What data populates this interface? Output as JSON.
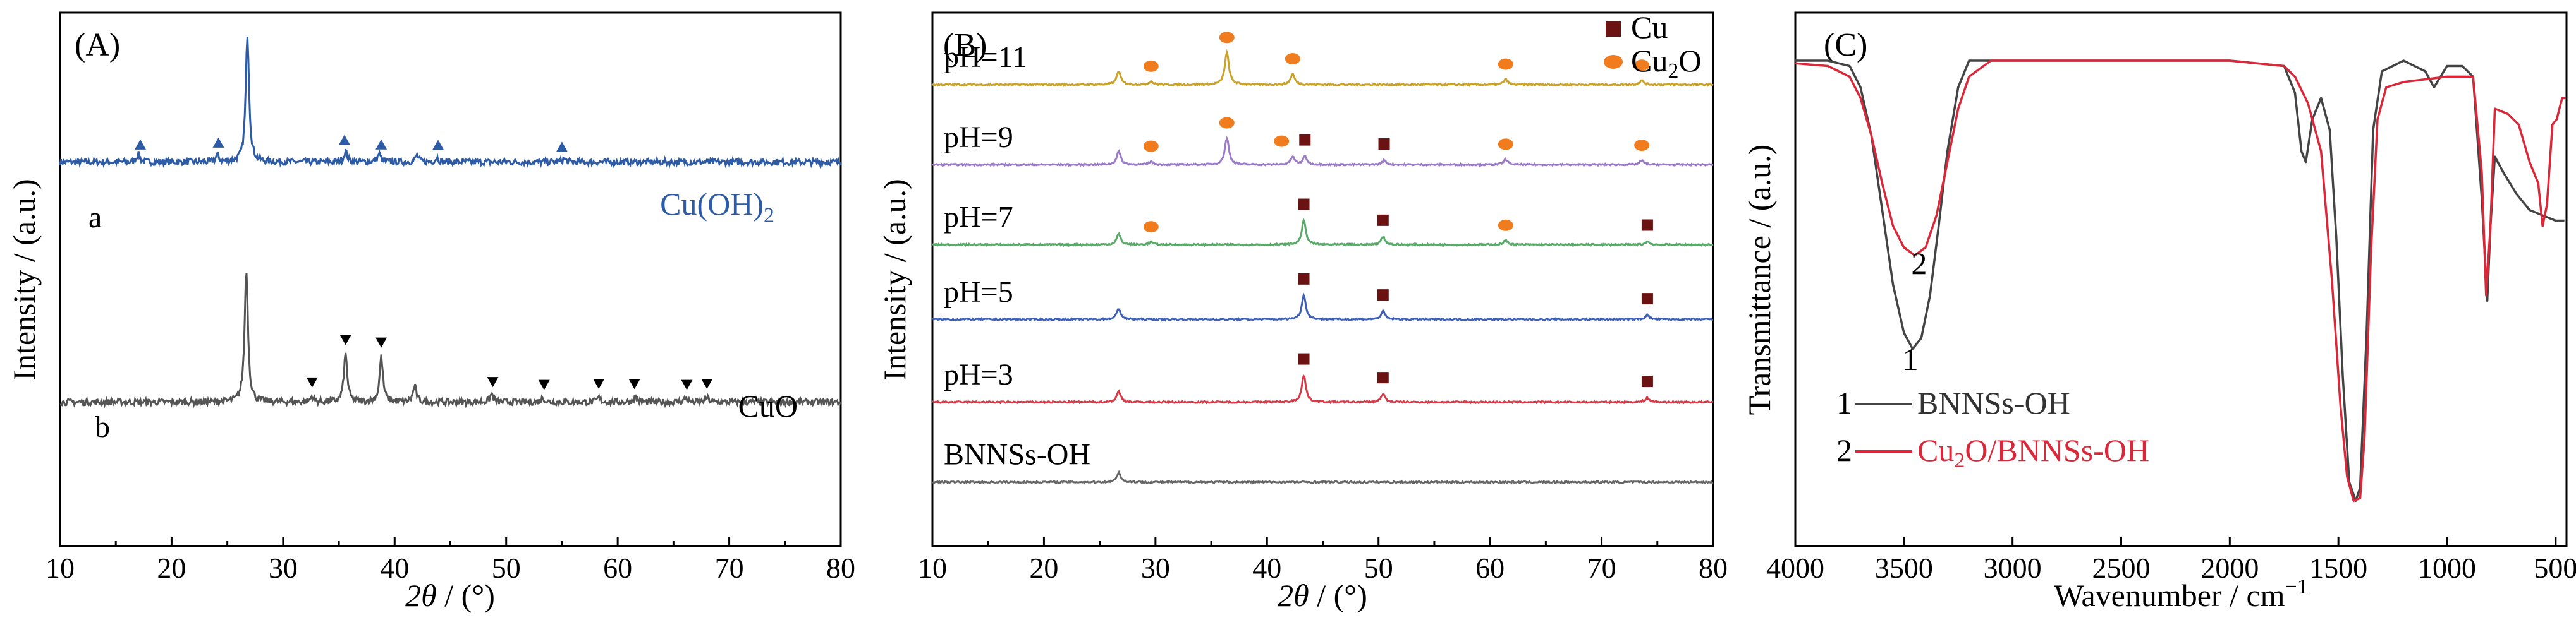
{
  "chart_data": [
    {
      "type": "line",
      "panel_label": "(A)",
      "xlabel_italic": "2θ",
      "xlabel_rest": " / (°)",
      "ylabel": "Intensity / (a.u.)",
      "xlim": [
        10,
        80
      ],
      "xticks": [
        10,
        20,
        30,
        40,
        50,
        60,
        70,
        80
      ],
      "series": [
        {
          "name": "Cu(OH)",
          "name_sub": "2",
          "trace_label": "a",
          "color": "#2d5ba6",
          "baseline": 0.72,
          "peaks": [
            [
              17.0,
              0.015
            ],
            [
              24.1,
              0.012
            ],
            [
              26.8,
              0.24
            ],
            [
              35.6,
              0.02
            ],
            [
              38.6,
              0.015
            ],
            [
              42.0,
              0.012
            ],
            [
              43.8,
              0.008
            ],
            [
              55.2,
              0.006
            ]
          ],
          "markers": {
            "shape": "triangle-up",
            "x": [
              17.2,
              24.2,
              35.5,
              38.8,
              43.9,
              55.0
            ]
          }
        },
        {
          "name": "CuO",
          "trace_label": "b",
          "color": "#555555",
          "baseline": 0.27,
          "peaks": [
            [
              26.7,
              0.25
            ],
            [
              32.6,
              0.01
            ],
            [
              35.6,
              0.09
            ],
            [
              38.8,
              0.085
            ],
            [
              41.8,
              0.03
            ],
            [
              48.7,
              0.015
            ],
            [
              53.3,
              0.008
            ],
            [
              58.3,
              0.008
            ],
            [
              61.6,
              0.01
            ],
            [
              66.1,
              0.008
            ],
            [
              68.0,
              0.008
            ]
          ],
          "markers": {
            "shape": "triangle-down",
            "x": [
              32.6,
              35.6,
              38.8,
              48.8,
              53.4,
              58.3,
              61.5,
              66.2,
              68.0
            ]
          }
        }
      ]
    },
    {
      "type": "line",
      "panel_label": "(B)",
      "xlabel_italic": "2θ",
      "xlabel_rest": " / (°)",
      "ylabel": "Intensity / (a.u.)",
      "xlim": [
        10,
        80
      ],
      "xticks": [
        10,
        20,
        30,
        40,
        50,
        60,
        70,
        80
      ],
      "legend": [
        {
          "name": "Cu",
          "color": "#6b1212",
          "shape": "square"
        },
        {
          "name": "Cu",
          "name_sub": "2",
          "name_tail": "O",
          "color": "#f07c1e",
          "shape": "circle"
        }
      ],
      "series": [
        {
          "name": "pH=11",
          "color": "#c9a227",
          "baseline": 0.865,
          "peaks": [
            [
              26.7,
              0.025
            ],
            [
              29.6,
              0.006
            ],
            [
              36.4,
              0.06
            ],
            [
              42.3,
              0.02
            ],
            [
              61.4,
              0.01
            ],
            [
              73.6,
              0.008
            ]
          ],
          "cu": [],
          "cu2o": [
            29.6,
            36.4,
            42.3,
            61.4,
            73.6
          ]
        },
        {
          "name": "pH=9",
          "color": "#9b7ac9",
          "baseline": 0.715,
          "peaks": [
            [
              26.7,
              0.025
            ],
            [
              29.6,
              0.006
            ],
            [
              36.4,
              0.05
            ],
            [
              42.3,
              0.015
            ],
            [
              43.4,
              0.015
            ],
            [
              50.5,
              0.008
            ],
            [
              61.4,
              0.01
            ],
            [
              73.6,
              0.008
            ]
          ],
          "cu": [
            43.4,
            50.5
          ],
          "cu2o": [
            29.6,
            36.4,
            42.3,
            61.4,
            73.6
          ]
        },
        {
          "name": "pH=7",
          "color": "#5aaa6a",
          "baseline": 0.565,
          "peaks": [
            [
              26.7,
              0.02
            ],
            [
              29.6,
              0.005
            ],
            [
              43.3,
              0.045
            ],
            [
              50.4,
              0.015
            ],
            [
              61.4,
              0.008
            ],
            [
              74.1,
              0.006
            ]
          ],
          "cu": [
            43.3,
            50.4,
            74.1
          ],
          "cu2o": [
            29.6,
            61.4
          ]
        },
        {
          "name": "pH=5",
          "color": "#3d5fb5",
          "baseline": 0.425,
          "peaks": [
            [
              26.7,
              0.02
            ],
            [
              43.3,
              0.045
            ],
            [
              50.4,
              0.015
            ],
            [
              74.1,
              0.008
            ]
          ],
          "cu": [
            43.3,
            50.4,
            74.1
          ],
          "cu2o": []
        },
        {
          "name": "pH=3",
          "color": "#d63a48",
          "baseline": 0.27,
          "peaks": [
            [
              26.7,
              0.02
            ],
            [
              43.3,
              0.05
            ],
            [
              50.4,
              0.015
            ],
            [
              74.1,
              0.008
            ]
          ],
          "cu": [
            43.3,
            50.4,
            74.1
          ],
          "cu2o": []
        },
        {
          "name": "BNNSs-OH",
          "color": "#666666",
          "baseline": 0.12,
          "peaks": [
            [
              26.7,
              0.018
            ]
          ],
          "cu": [],
          "cu2o": []
        }
      ]
    },
    {
      "type": "line",
      "panel_label": "(C)",
      "xlabel": "Wavenumber / cm",
      "xlabel_sup": "−1",
      "ylabel": "Transmittance / (a.u.)",
      "xlim": [
        4000,
        450
      ],
      "xticks": [
        4000,
        3500,
        3000,
        2500,
        2000,
        1500,
        1000,
        500
      ],
      "annotations": [
        {
          "text": "1",
          "x": 3470,
          "y": 0.33
        },
        {
          "text": "2",
          "x": 3430,
          "y": 0.51
        }
      ],
      "legend": [
        {
          "num": "1",
          "name": "BNNSs-OH",
          "color": "#444444"
        },
        {
          "num": "2",
          "name": "Cu",
          "name_sub": "2",
          "name_tail": "O/BNNSs-OH",
          "color": "#d8283a"
        }
      ],
      "series": [
        {
          "name": "BNNSs-OH",
          "color": "#444444",
          "points": [
            [
              4000,
              0.91
            ],
            [
              3850,
              0.91
            ],
            [
              3750,
              0.9
            ],
            [
              3700,
              0.86
            ],
            [
              3650,
              0.77
            ],
            [
              3600,
              0.63
            ],
            [
              3550,
              0.49
            ],
            [
              3500,
              0.4
            ],
            [
              3460,
              0.37
            ],
            [
              3420,
              0.39
            ],
            [
              3380,
              0.47
            ],
            [
              3340,
              0.6
            ],
            [
              3300,
              0.74
            ],
            [
              3250,
              0.86
            ],
            [
              3200,
              0.91
            ],
            [
              3000,
              0.91
            ],
            [
              2500,
              0.91
            ],
            [
              2000,
              0.91
            ],
            [
              1750,
              0.9
            ],
            [
              1700,
              0.85
            ],
            [
              1670,
              0.74
            ],
            [
              1650,
              0.72
            ],
            [
              1620,
              0.8
            ],
            [
              1580,
              0.84
            ],
            [
              1540,
              0.78
            ],
            [
              1510,
              0.58
            ],
            [
              1480,
              0.32
            ],
            [
              1450,
              0.12
            ],
            [
              1420,
              0.085
            ],
            [
              1400,
              0.11
            ],
            [
              1370,
              0.4
            ],
            [
              1340,
              0.78
            ],
            [
              1300,
              0.89
            ],
            [
              1200,
              0.91
            ],
            [
              1100,
              0.89
            ],
            [
              1060,
              0.86
            ],
            [
              1000,
              0.9
            ],
            [
              930,
              0.9
            ],
            [
              880,
              0.88
            ],
            [
              840,
              0.65
            ],
            [
              815,
              0.46
            ],
            [
              800,
              0.6
            ],
            [
              780,
              0.73
            ],
            [
              740,
              0.7
            ],
            [
              680,
              0.66
            ],
            [
              620,
              0.63
            ],
            [
              560,
              0.62
            ],
            [
              500,
              0.61
            ],
            [
              460,
              0.61
            ]
          ]
        },
        {
          "name": "Cu2O/BNNSs-OH",
          "color": "#d8283a",
          "points": [
            [
              4000,
              0.905
            ],
            [
              3850,
              0.9
            ],
            [
              3750,
              0.88
            ],
            [
              3700,
              0.84
            ],
            [
              3650,
              0.77
            ],
            [
              3600,
              0.68
            ],
            [
              3550,
              0.6
            ],
            [
              3500,
              0.56
            ],
            [
              3450,
              0.545
            ],
            [
              3400,
              0.56
            ],
            [
              3350,
              0.62
            ],
            [
              3300,
              0.72
            ],
            [
              3250,
              0.82
            ],
            [
              3200,
              0.88
            ],
            [
              3100,
              0.91
            ],
            [
              2500,
              0.91
            ],
            [
              2000,
              0.91
            ],
            [
              1750,
              0.9
            ],
            [
              1700,
              0.88
            ],
            [
              1640,
              0.83
            ],
            [
              1580,
              0.74
            ],
            [
              1530,
              0.5
            ],
            [
              1490,
              0.26
            ],
            [
              1460,
              0.13
            ],
            [
              1430,
              0.085
            ],
            [
              1400,
              0.09
            ],
            [
              1380,
              0.2
            ],
            [
              1350,
              0.55
            ],
            [
              1320,
              0.8
            ],
            [
              1280,
              0.86
            ],
            [
              1200,
              0.87
            ],
            [
              1000,
              0.88
            ],
            [
              880,
              0.88
            ],
            [
              840,
              0.7
            ],
            [
              820,
              0.47
            ],
            [
              800,
              0.6
            ],
            [
              780,
              0.82
            ],
            [
              720,
              0.81
            ],
            [
              670,
              0.79
            ],
            [
              620,
              0.72
            ],
            [
              580,
              0.68
            ],
            [
              560,
              0.6
            ],
            [
              540,
              0.64
            ],
            [
              515,
              0.79
            ],
            [
              495,
              0.8
            ],
            [
              470,
              0.84
            ],
            [
              455,
              0.84
            ]
          ]
        }
      ]
    }
  ]
}
